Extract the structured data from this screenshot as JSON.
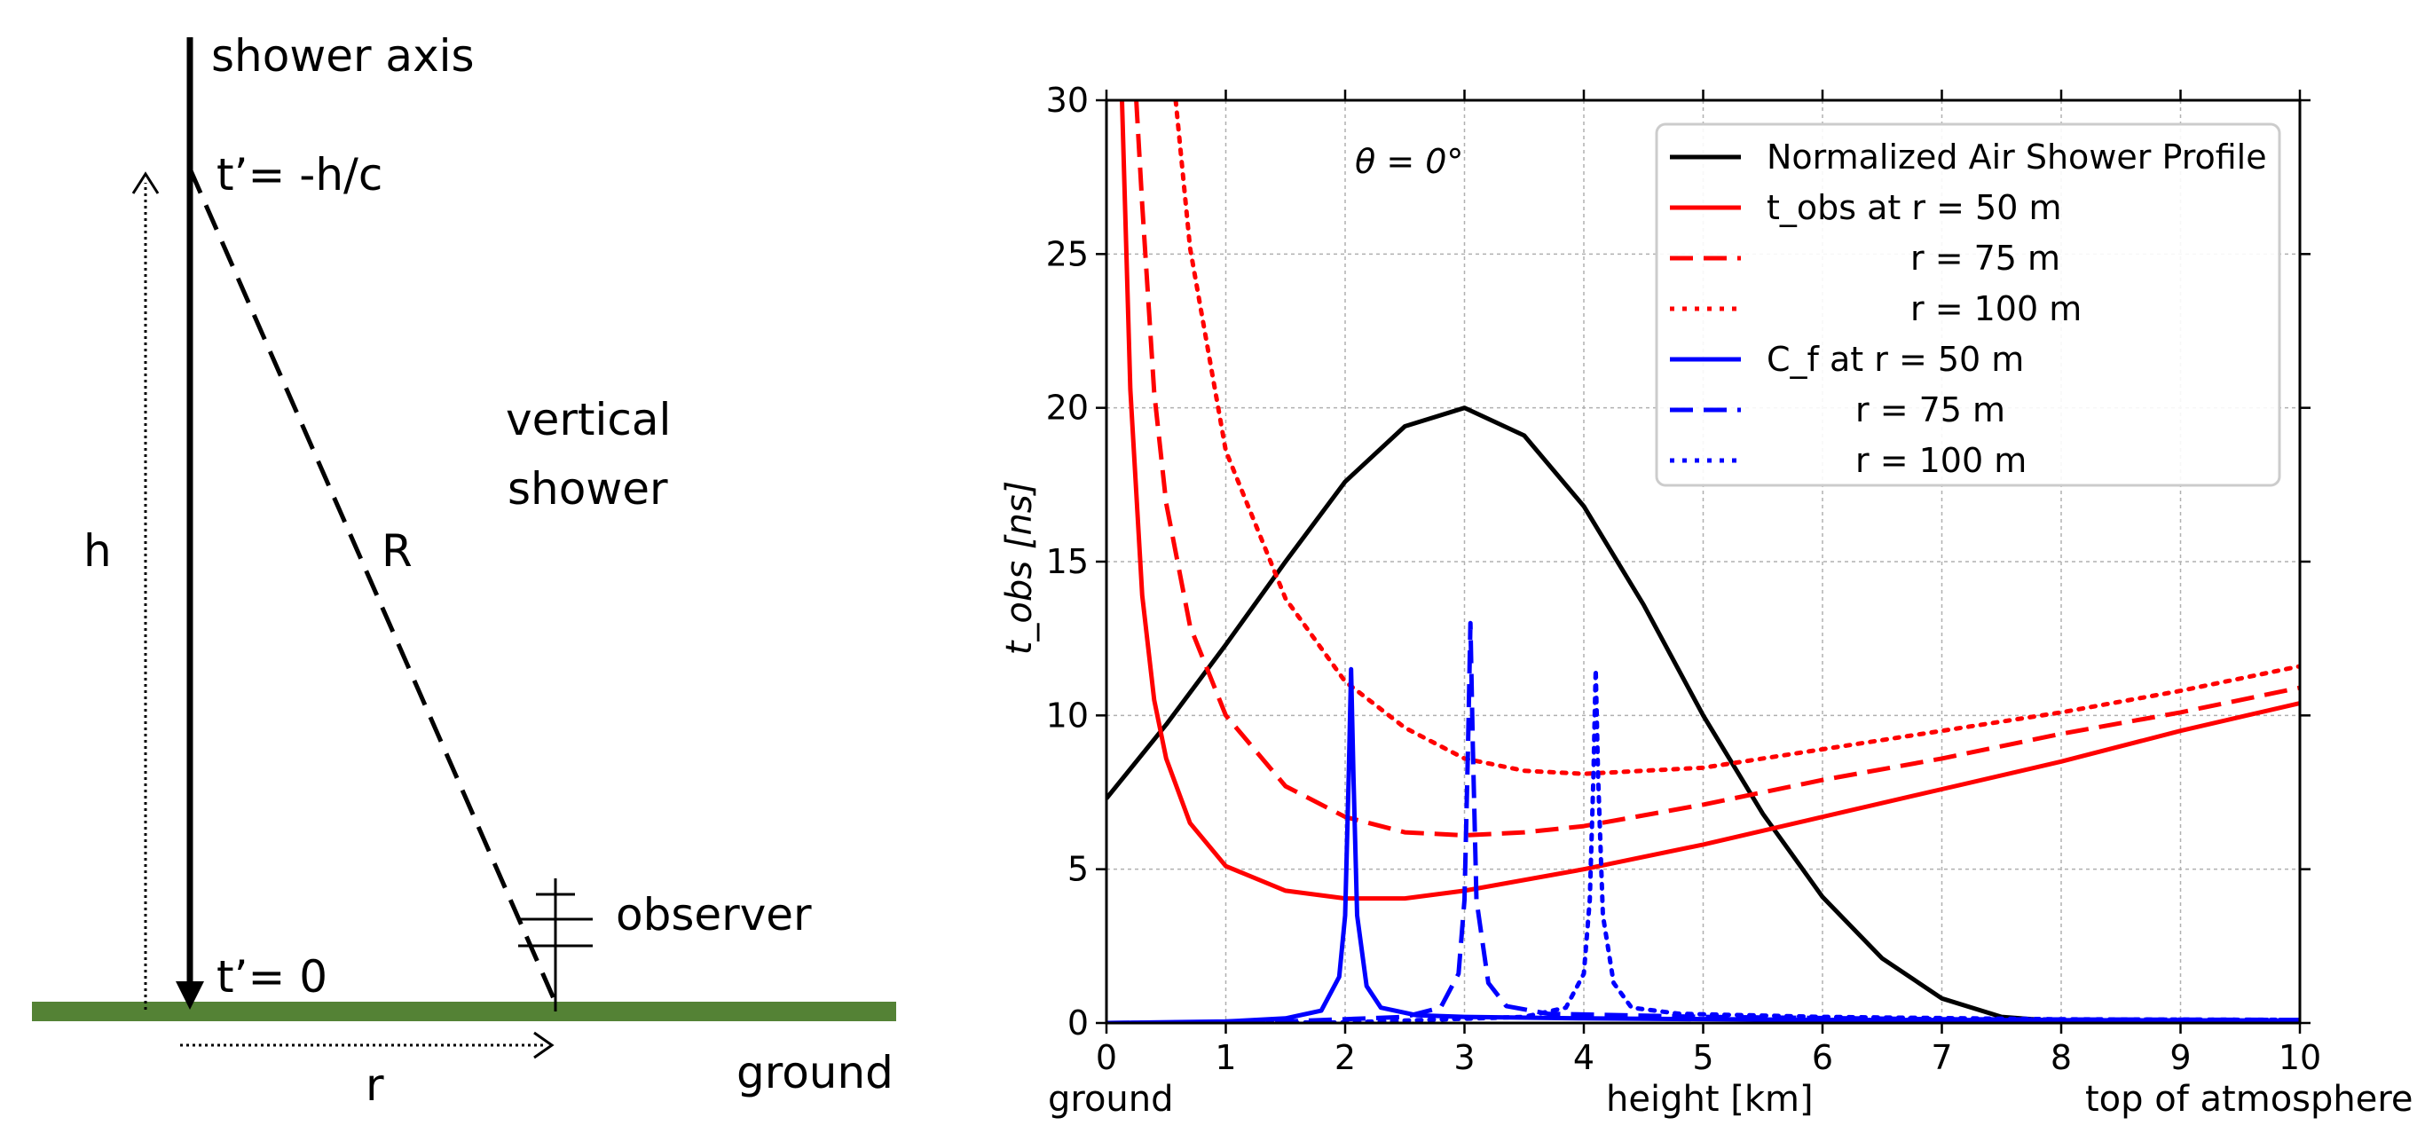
{
  "schematic": {
    "shower_axis_label": "shower axis",
    "t_top_label": "t’= -h/c",
    "t_bottom_label": "t’= 0",
    "height_label": "h",
    "distance_label": "R",
    "vertical_line1": "vertical",
    "vertical_line2": "shower",
    "observer_label": "observer",
    "radius_label": "r",
    "ground_label": "ground",
    "ground_color": "#548235"
  },
  "chart_data": {
    "type": "line",
    "title": "",
    "annotation": "θ = 0°",
    "xlabel": "height [km]",
    "x_left_note": "ground",
    "x_right_note": "top of atmosphere",
    "ylabel": "t_obs [ns]",
    "xlim": [
      0,
      10
    ],
    "ylim": [
      0,
      30
    ],
    "xticks": [
      "0",
      "1",
      "2",
      "3",
      "4",
      "5",
      "6",
      "7",
      "8",
      "9",
      "10"
    ],
    "yticks": [
      "0",
      "5",
      "10",
      "15",
      "20",
      "25",
      "30"
    ],
    "grid": true,
    "legend_position": "top-right",
    "legend": [
      {
        "name": "Normalized Air Shower Profile"
      },
      {
        "name": "t_obs at r = 50 m"
      },
      {
        "name": "r = 75 m"
      },
      {
        "name": "r = 100 m"
      },
      {
        "name": "C_f at r = 50 m"
      },
      {
        "name": "r = 75 m"
      },
      {
        "name": "r = 100 m"
      }
    ],
    "series": [
      {
        "name": "Normalized Air Shower Profile",
        "color": "#000000",
        "style": "solid",
        "points": [
          [
            0,
            7.3
          ],
          [
            0.5,
            9.7
          ],
          [
            1,
            12.3
          ],
          [
            1.5,
            15.0
          ],
          [
            2,
            17.6
          ],
          [
            2.5,
            19.4
          ],
          [
            3,
            20.0
          ],
          [
            3.5,
            19.1
          ],
          [
            4,
            16.8
          ],
          [
            4.5,
            13.6
          ],
          [
            5,
            10.0
          ],
          [
            5.5,
            6.8
          ],
          [
            6,
            4.1
          ],
          [
            6.5,
            2.1
          ],
          [
            7,
            0.8
          ],
          [
            7.5,
            0.2
          ],
          [
            8,
            0.05
          ],
          [
            9,
            0.0
          ],
          [
            10,
            0.0
          ]
        ]
      },
      {
        "name": "t_obs at r = 50 m",
        "color": "#ff0000",
        "style": "solid",
        "points": [
          [
            0.13,
            30
          ],
          [
            0.2,
            20.6
          ],
          [
            0.3,
            13.9
          ],
          [
            0.4,
            10.5
          ],
          [
            0.5,
            8.6
          ],
          [
            0.7,
            6.5
          ],
          [
            1,
            5.1
          ],
          [
            1.5,
            4.3
          ],
          [
            2,
            4.05
          ],
          [
            2.5,
            4.05
          ],
          [
            3,
            4.3
          ],
          [
            4,
            5.0
          ],
          [
            5,
            5.8
          ],
          [
            6,
            6.7
          ],
          [
            7,
            7.6
          ],
          [
            8,
            8.5
          ],
          [
            9,
            9.5
          ],
          [
            10,
            10.4
          ]
        ]
      },
      {
        "name": "t_obs at r = 75 m",
        "color": "#ff0000",
        "style": "dashed",
        "points": [
          [
            0.25,
            30
          ],
          [
            0.3,
            26.6
          ],
          [
            0.4,
            20.5
          ],
          [
            0.5,
            16.9
          ],
          [
            0.7,
            12.9
          ],
          [
            1,
            10.0
          ],
          [
            1.5,
            7.7
          ],
          [
            2,
            6.7
          ],
          [
            2.5,
            6.2
          ],
          [
            3,
            6.1
          ],
          [
            3.5,
            6.2
          ],
          [
            4,
            6.4
          ],
          [
            5,
            7.1
          ],
          [
            6,
            7.9
          ],
          [
            7,
            8.6
          ],
          [
            8,
            9.4
          ],
          [
            9,
            10.1
          ],
          [
            10,
            10.9
          ]
        ]
      },
      {
        "name": "t_obs at r = 100 m",
        "color": "#ff0000",
        "style": "dotted",
        "points": [
          [
            0.58,
            30
          ],
          [
            0.7,
            25.2
          ],
          [
            1,
            18.6
          ],
          [
            1.5,
            13.8
          ],
          [
            2,
            11.1
          ],
          [
            2.5,
            9.6
          ],
          [
            3,
            8.6
          ],
          [
            3.5,
            8.2
          ],
          [
            4,
            8.1
          ],
          [
            4.5,
            8.2
          ],
          [
            5,
            8.3
          ],
          [
            6,
            8.9
          ],
          [
            7,
            9.5
          ],
          [
            8,
            10.1
          ],
          [
            9,
            10.8
          ],
          [
            10,
            11.6
          ]
        ]
      },
      {
        "name": "C_f at r = 50 m",
        "color": "#0000ff",
        "style": "solid",
        "points": [
          [
            0,
            0.0
          ],
          [
            1,
            0.05
          ],
          [
            1.5,
            0.15
          ],
          [
            1.8,
            0.4
          ],
          [
            1.95,
            1.5
          ],
          [
            2.0,
            3.5
          ],
          [
            2.03,
            8
          ],
          [
            2.05,
            11.5
          ],
          [
            2.07,
            8
          ],
          [
            2.1,
            3.5
          ],
          [
            2.18,
            1.2
          ],
          [
            2.3,
            0.5
          ],
          [
            2.6,
            0.25
          ],
          [
            3,
            0.2
          ],
          [
            4,
            0.15
          ],
          [
            6,
            0.1
          ],
          [
            10,
            0.08
          ]
        ]
      },
      {
        "name": "C_f at r = 75 m",
        "color": "#0000ff",
        "style": "dashed",
        "points": [
          [
            0,
            0.0
          ],
          [
            1.5,
            0.05
          ],
          [
            2.5,
            0.2
          ],
          [
            2.8,
            0.5
          ],
          [
            2.95,
            1.6
          ],
          [
            3.0,
            4.0
          ],
          [
            3.03,
            9
          ],
          [
            3.05,
            13.0
          ],
          [
            3.07,
            9
          ],
          [
            3.1,
            4.0
          ],
          [
            3.2,
            1.3
          ],
          [
            3.35,
            0.55
          ],
          [
            3.7,
            0.3
          ],
          [
            5,
            0.2
          ],
          [
            7,
            0.12
          ],
          [
            10,
            0.1
          ]
        ]
      },
      {
        "name": "C_f at r = 100 m",
        "color": "#0000ff",
        "style": "dotted",
        "points": [
          [
            0,
            0.0
          ],
          [
            2,
            0.02
          ],
          [
            3.5,
            0.2
          ],
          [
            3.85,
            0.5
          ],
          [
            4.0,
            1.6
          ],
          [
            4.05,
            4.0
          ],
          [
            4.08,
            8
          ],
          [
            4.1,
            11.5
          ],
          [
            4.12,
            8
          ],
          [
            4.16,
            3.5
          ],
          [
            4.25,
            1.3
          ],
          [
            4.4,
            0.5
          ],
          [
            4.8,
            0.3
          ],
          [
            6,
            0.2
          ],
          [
            8,
            0.12
          ],
          [
            10,
            0.1
          ]
        ]
      }
    ]
  }
}
